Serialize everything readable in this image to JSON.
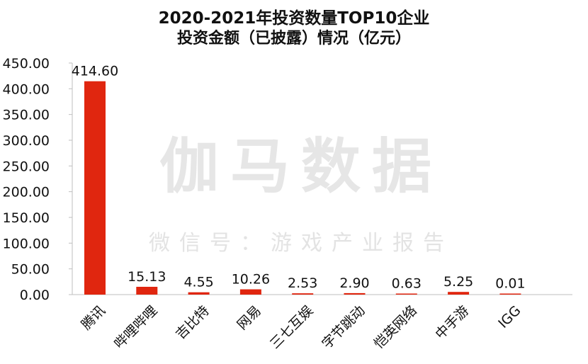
{
  "title": {
    "line1": "2020-2021年投资数量TOP10企业",
    "line2": "投资金额（已披露）情况（亿元）"
  },
  "watermark": {
    "line1": "伽马数据",
    "line2": "微信号：游戏产业报告"
  },
  "colors": {
    "bar": "#e0260f",
    "axis": "#bfbfbf",
    "text": "#111111"
  },
  "chart_data": {
    "type": "bar",
    "categories": [
      "腾讯",
      "哔哩哔哩",
      "吉比特",
      "网易",
      "三七互娱",
      "字节跳动",
      "恺英网络",
      "中手游",
      "IGG"
    ],
    "values": [
      414.6,
      15.13,
      4.55,
      10.26,
      2.53,
      2.9,
      0.63,
      5.25,
      0.01
    ],
    "value_labels": [
      "414.60",
      "15.13",
      "4.55",
      "10.26",
      "2.53",
      "2.90",
      "0.63",
      "5.25",
      "0.01"
    ],
    "yticks": [
      "0.00",
      "50.00",
      "100.00",
      "150.00",
      "200.00",
      "250.00",
      "300.00",
      "350.00",
      "400.00",
      "450.00"
    ],
    "ylim": [
      0,
      450
    ],
    "grid": false,
    "legend": "none"
  }
}
